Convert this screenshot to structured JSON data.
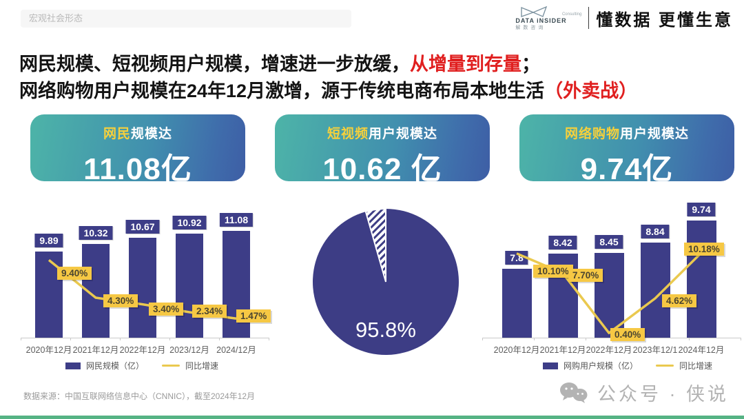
{
  "header": {
    "section_label": "宏观社会形态",
    "logo": {
      "name": "DATA iNSIDER",
      "tag": "Consulting",
      "sub": "解数咨询"
    },
    "slogan": "懂数据 更懂生意"
  },
  "title": {
    "line1_black": "网民规模、短视频用户规模，增速进一步放缓，",
    "line1_red": "从增量到存量",
    "line1_tail": "；",
    "line2_black": "网络购物用户规模在24年12月激增，源于传统电商布局本地生活",
    "line2_red": "（外卖战）"
  },
  "badges": [
    {
      "highlight": "网民",
      "rest": "规模达",
      "value": "11.08亿"
    },
    {
      "highlight": "短视频",
      "rest": "用户规模达",
      "value": "10.62 亿"
    },
    {
      "highlight": "网络购物",
      "rest": "用户规模达",
      "value": "9.74亿"
    }
  ],
  "chart_data": [
    {
      "type": "bar",
      "name": "internet-users-trend",
      "categories": [
        "2020年12月",
        "2021年12月",
        "2022年12月",
        "2023/12月",
        "2024/12月"
      ],
      "series": [
        {
          "name": "网民规模（亿）",
          "type": "bar",
          "values": [
            9.89,
            10.32,
            10.67,
            10.92,
            11.08
          ],
          "labels": [
            "9.89",
            "10.32",
            "10.67",
            "10.92",
            "11.08"
          ],
          "color": "#3d3d87"
        },
        {
          "name": "同比增速",
          "type": "line",
          "values": [
            9.4,
            4.3,
            3.4,
            2.34,
            1.47
          ],
          "labels": [
            "9.40%",
            "4.30%",
            "3.40%",
            "2.34%",
            "1.47%"
          ],
          "color": "#eac94f"
        }
      ],
      "legend_position": "bottom",
      "grid": false
    },
    {
      "type": "pie",
      "name": "shortvideo-user-share",
      "slices": [
        {
          "label": "95.8%",
          "value": 95.8,
          "color": "#3d3d85"
        },
        {
          "label": "",
          "value": 4.2,
          "style": "hatched"
        }
      ]
    },
    {
      "type": "bar",
      "name": "online-shopping-trend",
      "categories": [
        "2020年12月",
        "2021年12月",
        "2022年12月",
        "2023年12/1",
        "2024年12月"
      ],
      "series": [
        {
          "name": "网购用户规模（亿）",
          "type": "bar",
          "values": [
            7.8,
            8.42,
            8.45,
            8.84,
            9.74
          ],
          "labels": [
            "7.8",
            "8.42",
            "8.45",
            "8.84",
            "9.74"
          ],
          "color": "#3d3d87"
        },
        {
          "name": "同比增速",
          "type": "line",
          "values": [
            10.1,
            7.7,
            0.4,
            4.62,
            10.18
          ],
          "labels": [
            "10.10%",
            "7.70%",
            "0.40%",
            "4.62%",
            "10.18%"
          ],
          "color": "#eac94f"
        }
      ],
      "legend_position": "bottom",
      "grid": false
    }
  ],
  "footer": {
    "source": "数据来源：中国互联网络信息中心（CNNIC），截至2024年12月",
    "wechat": "公众号 · 侠说"
  },
  "colors": {
    "bar_navy": "#3d3d87",
    "pie_navy": "#3d3d85",
    "line_gold": "#eac94f",
    "label_yellow": "#f6c844",
    "badge_teal": "#4db4a8",
    "badge_blue": "#3e5ea5",
    "accent_red": "#e01f1f",
    "bottom_strip_green": "#55b384"
  }
}
